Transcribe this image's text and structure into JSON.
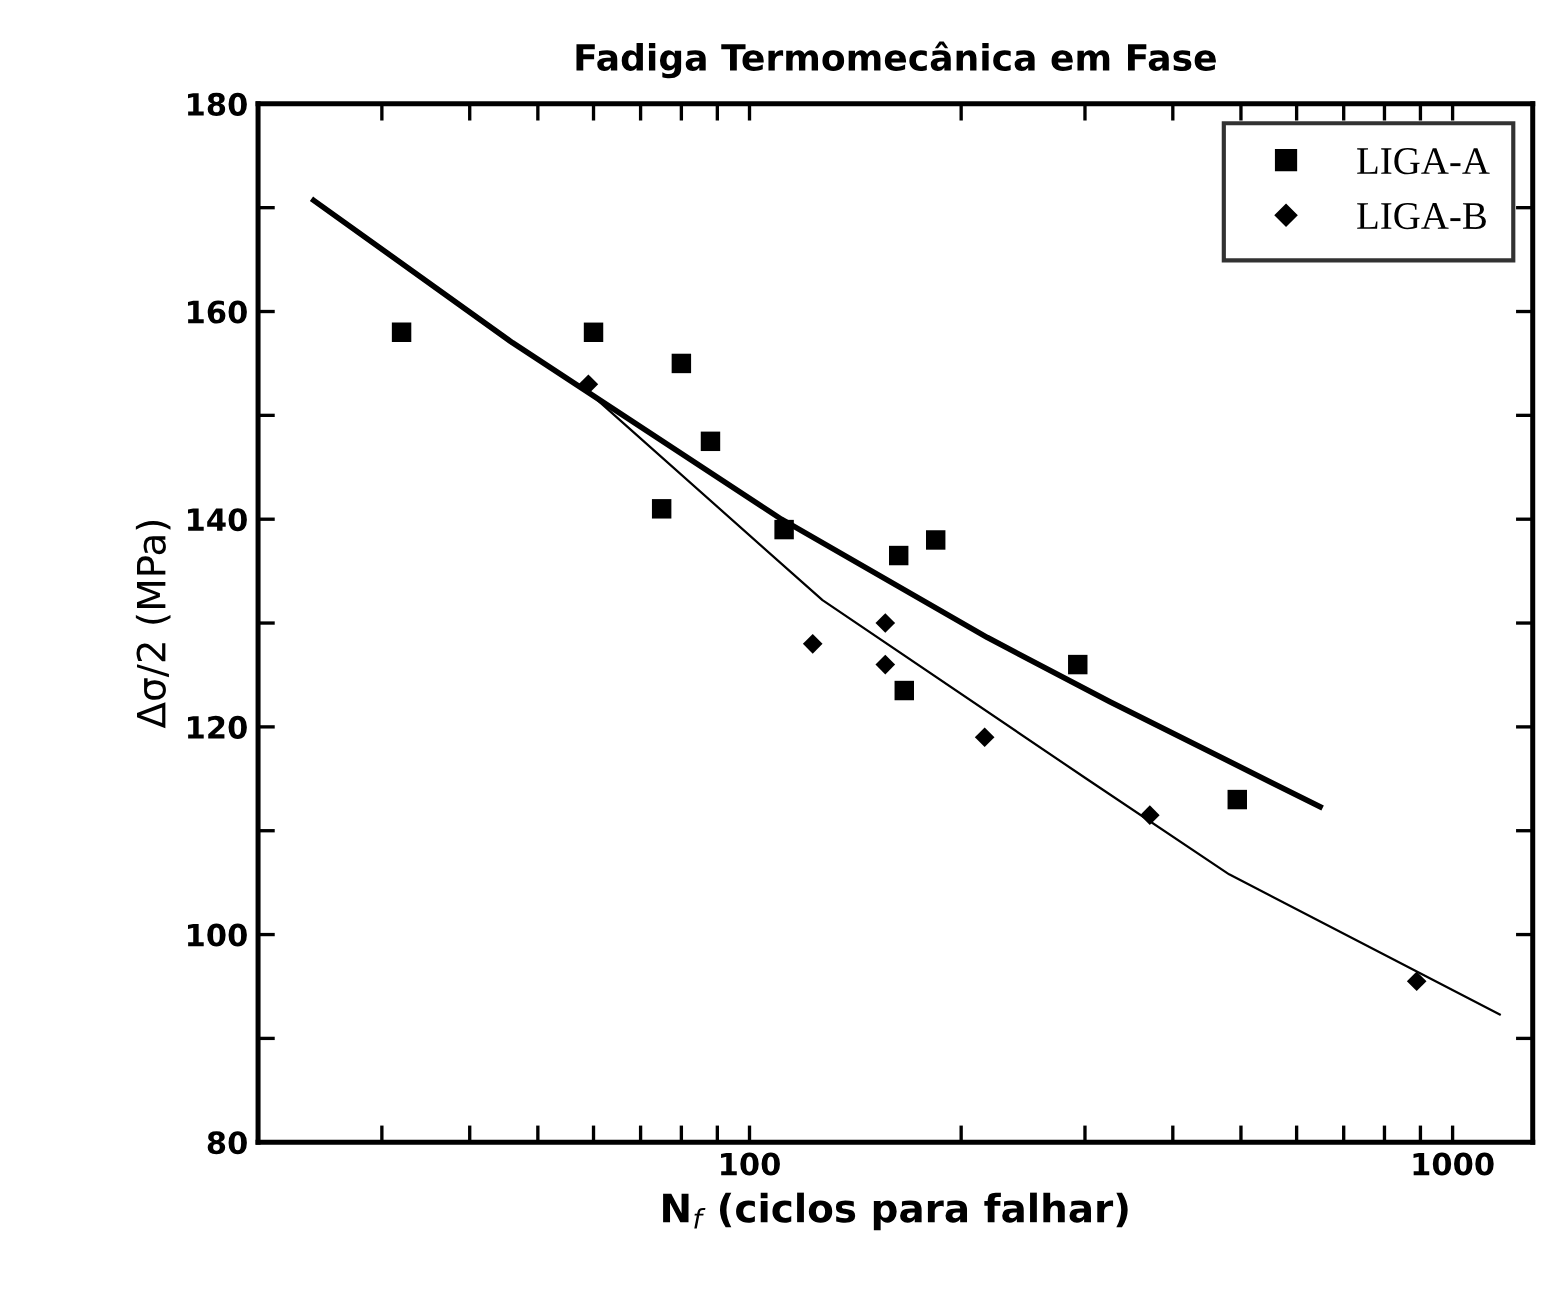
{
  "chart_data": {
    "type": "scatter",
    "title": "Fadiga Termomecânica em Fase",
    "xlabel": "N$_{f}$ (ciclos para falhar)",
    "ylabel": "Δσ/2 (MPa)",
    "log": "x",
    "xlim": [
      20,
      1300
    ],
    "ylim": [
      80,
      180
    ],
    "xticks": [
      {
        "value": 20,
        "label": null
      },
      {
        "value": 30,
        "label": null
      },
      {
        "value": 40,
        "label": null
      },
      {
        "value": 50,
        "label": null
      },
      {
        "value": 60,
        "label": null
      },
      {
        "value": 70,
        "label": null
      },
      {
        "value": 80,
        "label": null
      },
      {
        "value": 90,
        "label": null
      },
      100,
      {
        "value": 200,
        "label": null
      },
      {
        "value": 300,
        "label": null
      },
      {
        "value": 400,
        "label": null
      },
      {
        "value": 500,
        "label": null
      },
      {
        "value": 600,
        "label": null
      },
      {
        "value": 700,
        "label": null
      },
      {
        "value": 800,
        "label": null
      },
      {
        "value": 900,
        "label": null
      },
      1000
    ],
    "yticks": [
      80,
      {
        "value": 90,
        "label": null
      },
      100,
      {
        "value": 110,
        "label": null
      },
      120,
      {
        "value": 130,
        "label": null
      },
      140,
      {
        "value": 150,
        "label": null
      },
      160,
      {
        "value": 170,
        "label": null
      },
      180
    ],
    "grid": false,
    "legend": "top right",
    "series": [
      {
        "name": "LIGA-A",
        "marker": "square",
        "color": "#000000",
        "x": [
          32,
          60,
          80,
          88,
          75,
          112,
          163,
          184,
          293,
          166,
          494
        ],
        "values": [
          158,
          158,
          155,
          147.5,
          141,
          139,
          136.5,
          138,
          126,
          123.5,
          113
        ]
      },
      {
        "name": "LIGA-B",
        "marker": "diamond",
        "color": "#000000",
        "x": [
          59,
          156,
          123,
          156,
          216,
          371,
          889
        ],
        "values": [
          153,
          130,
          128,
          126,
          119,
          111.5,
          95.5
        ]
      },
      {
        "type": "line",
        "color": "#000000",
        "marker": "none",
        "x": [
          24,
          46,
          111,
          218,
          326,
          648
        ],
        "values": [
          170.7,
          157,
          140,
          128.6,
          122.4,
          112.3
        ]
      },
      {
        "type": "line",
        "color": "#000000",
        "marker": "none",
        "x": [
          46,
          60,
          127,
          300,
          481,
          1167
        ],
        "values": [
          157,
          151.8,
          132.2,
          115.1,
          105.8,
          92.3
        ]
      }
    ]
  }
}
